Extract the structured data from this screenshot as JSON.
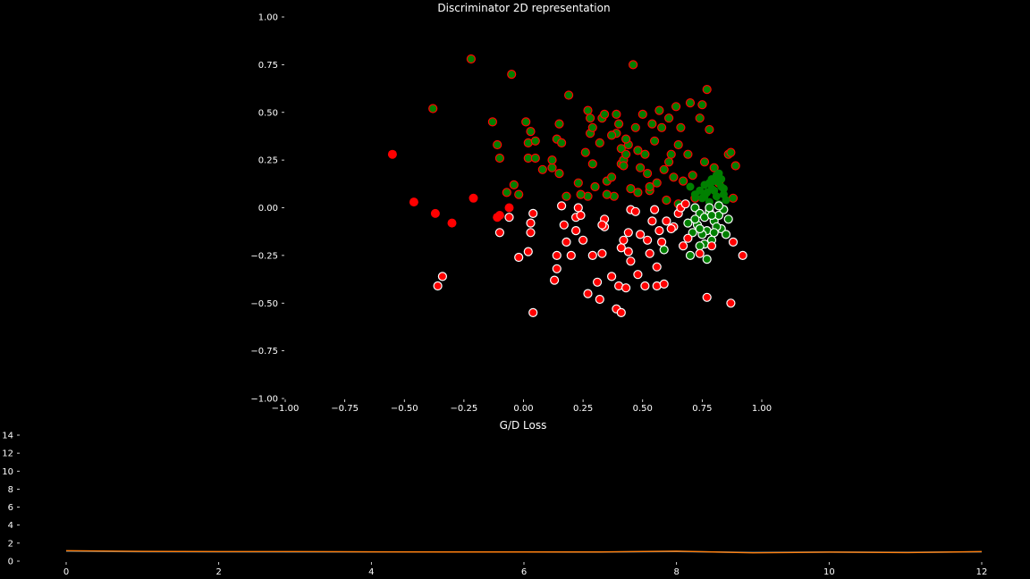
{
  "chart_data": [
    {
      "type": "scatter",
      "title": "Discriminator 2D representation",
      "xlabel": "",
      "ylabel": "",
      "xlim": [
        -1.0,
        1.0
      ],
      "ylim": [
        -1.0,
        1.0
      ],
      "x_ticks": [
        "−1.00",
        "−0.75",
        "−0.50",
        "−0.25",
        "0.00",
        "0.25",
        "0.50",
        "0.75",
        "1.00"
      ],
      "y_ticks": [
        "1.00",
        "0.75",
        "0.50",
        "0.25",
        "0.00",
        "−0.25",
        "−0.50",
        "−0.75",
        "−1.00"
      ],
      "grid": false,
      "colors": {
        "background": "#000000",
        "red": "#ff0000",
        "green": "#008000",
        "edge": "#ffffff"
      },
      "series": [
        {
          "marker": "red dot, no edge",
          "points": [
            [
              -0.55,
              0.28
            ],
            [
              -0.46,
              0.03
            ],
            [
              -0.37,
              -0.03
            ],
            [
              -0.3,
              -0.08
            ],
            [
              -0.21,
              0.05
            ],
            [
              -0.1,
              -0.04
            ],
            [
              -0.11,
              -0.05
            ],
            [
              -0.06,
              0.0
            ]
          ]
        },
        {
          "marker": "green dot, red edge",
          "points": [
            [
              -0.22,
              0.78
            ],
            [
              -0.05,
              0.7
            ],
            [
              -0.38,
              0.52
            ],
            [
              -0.13,
              0.45
            ],
            [
              -0.11,
              0.33
            ],
            [
              -0.1,
              0.26
            ],
            [
              -0.07,
              0.08
            ],
            [
              -0.04,
              0.12
            ],
            [
              -0.02,
              0.07
            ],
            [
              0.01,
              0.45
            ],
            [
              0.03,
              0.4
            ],
            [
              0.02,
              0.34
            ],
            [
              0.05,
              0.35
            ],
            [
              0.02,
              0.26
            ],
            [
              0.05,
              0.26
            ],
            [
              0.08,
              0.2
            ],
            [
              0.12,
              0.21
            ],
            [
              0.14,
              0.36
            ],
            [
              0.15,
              0.44
            ],
            [
              0.16,
              0.34
            ],
            [
              0.15,
              0.18
            ],
            [
              0.18,
              0.06
            ],
            [
              0.19,
              0.59
            ],
            [
              0.23,
              0.13
            ],
            [
              0.26,
              0.29
            ],
            [
              0.27,
              0.51
            ],
            [
              0.28,
              0.47
            ],
            [
              0.28,
              0.39
            ],
            [
              0.29,
              0.42
            ],
            [
              0.29,
              0.23
            ],
            [
              0.27,
              0.06
            ],
            [
              0.3,
              0.11
            ],
            [
              0.32,
              0.34
            ],
            [
              0.33,
              0.47
            ],
            [
              0.34,
              0.49
            ],
            [
              0.35,
              0.14
            ],
            [
              0.37,
              0.16
            ],
            [
              0.38,
              0.06
            ],
            [
              0.39,
              0.49
            ],
            [
              0.39,
              0.39
            ],
            [
              0.4,
              0.44
            ],
            [
              0.41,
              0.31
            ],
            [
              0.41,
              0.23
            ],
            [
              0.42,
              0.25
            ],
            [
              0.43,
              0.28
            ],
            [
              0.44,
              0.33
            ],
            [
              0.45,
              0.1
            ],
            [
              0.46,
              0.75
            ],
            [
              0.47,
              0.42
            ],
            [
              0.48,
              0.3
            ],
            [
              0.49,
              0.21
            ],
            [
              0.5,
              0.49
            ],
            [
              0.51,
              0.28
            ],
            [
              0.52,
              0.18
            ],
            [
              0.53,
              0.09
            ],
            [
              0.54,
              0.44
            ],
            [
              0.55,
              0.35
            ],
            [
              0.56,
              0.13
            ],
            [
              0.57,
              0.51
            ],
            [
              0.58,
              0.42
            ],
            [
              0.59,
              0.2
            ],
            [
              0.6,
              0.04
            ],
            [
              0.61,
              0.47
            ],
            [
              0.62,
              0.28
            ],
            [
              0.63,
              0.16
            ],
            [
              0.64,
              0.53
            ],
            [
              0.65,
              0.33
            ],
            [
              0.66,
              0.42
            ],
            [
              0.67,
              0.14
            ],
            [
              0.69,
              0.28
            ],
            [
              0.7,
              0.55
            ],
            [
              0.71,
              0.17
            ],
            [
              0.72,
              0.05
            ],
            [
              0.74,
              0.47
            ],
            [
              0.75,
              0.54
            ],
            [
              0.76,
              0.24
            ],
            [
              0.77,
              0.62
            ],
            [
              0.78,
              0.41
            ],
            [
              0.8,
              0.21
            ],
            [
              0.82,
              0.13
            ],
            [
              0.86,
              0.28
            ],
            [
              0.87,
              0.29
            ],
            [
              0.88,
              0.05
            ],
            [
              0.89,
              0.22
            ],
            [
              0.37,
              0.38
            ],
            [
              0.43,
              0.36
            ],
            [
              0.24,
              0.07
            ],
            [
              0.35,
              0.07
            ],
            [
              0.53,
              0.11
            ],
            [
              0.61,
              0.24
            ],
            [
              0.65,
              0.02
            ],
            [
              0.42,
              0.22
            ],
            [
              0.48,
              0.08
            ],
            [
              0.12,
              0.25
            ]
          ]
        },
        {
          "marker": "green dot, no edge",
          "points": [
            [
              0.7,
              0.11
            ],
            [
              0.72,
              0.07
            ],
            [
              0.74,
              0.09
            ],
            [
              0.75,
              0.05
            ],
            [
              0.76,
              0.12
            ],
            [
              0.77,
              0.08
            ],
            [
              0.78,
              0.03
            ],
            [
              0.79,
              0.1
            ],
            [
              0.8,
              0.14
            ],
            [
              0.81,
              0.06
            ],
            [
              0.82,
              0.18
            ],
            [
              0.83,
              0.11
            ],
            [
              0.84,
              0.07
            ],
            [
              0.85,
              0.04
            ],
            [
              0.79,
              0.15
            ],
            [
              0.81,
              0.17
            ],
            [
              0.83,
              0.15
            ],
            [
              0.76,
              0.06
            ],
            [
              0.78,
              0.13
            ],
            [
              0.8,
              0.09
            ],
            [
              0.82,
              0.02
            ],
            [
              0.84,
              0.1
            ]
          ]
        },
        {
          "marker": "green dot, white edge",
          "points": [
            [
              0.72,
              0.0
            ],
            [
              0.74,
              -0.03
            ],
            [
              0.76,
              -0.05
            ],
            [
              0.78,
              -0.02
            ],
            [
              0.8,
              -0.07
            ],
            [
              0.82,
              -0.04
            ],
            [
              0.83,
              -0.11
            ],
            [
              0.77,
              -0.12
            ],
            [
              0.75,
              -0.14
            ],
            [
              0.73,
              -0.09
            ],
            [
              0.79,
              -0.17
            ],
            [
              0.81,
              -0.1
            ],
            [
              0.84,
              -0.01
            ],
            [
              0.85,
              -0.14
            ],
            [
              0.71,
              -0.13
            ],
            [
              0.69,
              -0.08
            ],
            [
              0.78,
              0.0
            ],
            [
              0.8,
              -0.13
            ],
            [
              0.82,
              0.01
            ],
            [
              0.76,
              -0.19
            ],
            [
              0.74,
              -0.2
            ],
            [
              0.7,
              -0.25
            ],
            [
              0.77,
              -0.27
            ],
            [
              0.59,
              -0.22
            ],
            [
              0.74,
              -0.11
            ],
            [
              0.86,
              -0.06
            ],
            [
              0.79,
              -0.04
            ],
            [
              0.72,
              -0.06
            ]
          ]
        },
        {
          "marker": "red dot, white edge",
          "points": [
            [
              -0.1,
              -0.13
            ],
            [
              -0.06,
              -0.05
            ],
            [
              -0.02,
              -0.26
            ],
            [
              0.02,
              -0.23
            ],
            [
              0.03,
              -0.08
            ],
            [
              0.04,
              -0.03
            ],
            [
              0.03,
              -0.13
            ],
            [
              0.04,
              -0.55
            ],
            [
              0.13,
              -0.38
            ],
            [
              0.14,
              -0.32
            ],
            [
              0.14,
              -0.25
            ],
            [
              0.16,
              0.01
            ],
            [
              0.17,
              -0.09
            ],
            [
              0.18,
              -0.18
            ],
            [
              0.2,
              -0.25
            ],
            [
              0.22,
              -0.05
            ],
            [
              0.24,
              -0.04
            ],
            [
              0.22,
              -0.12
            ],
            [
              0.25,
              -0.17
            ],
            [
              0.27,
              -0.45
            ],
            [
              0.29,
              -0.25
            ],
            [
              0.31,
              -0.39
            ],
            [
              0.32,
              -0.48
            ],
            [
              0.33,
              -0.24
            ],
            [
              0.34,
              -0.1
            ],
            [
              0.34,
              -0.06
            ],
            [
              0.37,
              -0.36
            ],
            [
              0.39,
              -0.53
            ],
            [
              0.4,
              -0.41
            ],
            [
              0.41,
              -0.55
            ],
            [
              0.41,
              -0.21
            ],
            [
              0.42,
              -0.17
            ],
            [
              0.43,
              -0.42
            ],
            [
              0.44,
              -0.23
            ],
            [
              0.45,
              -0.28
            ],
            [
              0.44,
              -0.13
            ],
            [
              0.45,
              -0.01
            ],
            [
              0.47,
              -0.02
            ],
            [
              0.48,
              -0.35
            ],
            [
              0.49,
              -0.14
            ],
            [
              0.51,
              -0.41
            ],
            [
              0.52,
              -0.17
            ],
            [
              0.53,
              -0.24
            ],
            [
              0.54,
              -0.07
            ],
            [
              0.55,
              -0.01
            ],
            [
              0.56,
              -0.41
            ],
            [
              0.56,
              -0.31
            ],
            [
              0.57,
              -0.12
            ],
            [
              0.58,
              -0.18
            ],
            [
              0.59,
              -0.4
            ],
            [
              0.6,
              -0.07
            ],
            [
              0.63,
              -0.1
            ],
            [
              0.65,
              -0.03
            ],
            [
              0.67,
              -0.2
            ],
            [
              0.69,
              -0.16
            ],
            [
              0.77,
              -0.47
            ],
            [
              0.79,
              -0.2
            ],
            [
              0.87,
              -0.5
            ],
            [
              0.88,
              -0.18
            ],
            [
              0.92,
              -0.25
            ],
            [
              -0.34,
              -0.36
            ],
            [
              -0.36,
              -0.41
            ],
            [
              0.66,
              0.0
            ],
            [
              0.68,
              0.02
            ],
            [
              0.62,
              -0.11
            ],
            [
              0.74,
              -0.24
            ],
            [
              0.33,
              -0.09
            ],
            [
              0.23,
              0.0
            ]
          ]
        }
      ]
    },
    {
      "type": "line",
      "title": "G/D Loss",
      "xlabel": "",
      "ylabel": "",
      "xlim": [
        0,
        12
      ],
      "ylim": [
        0,
        14
      ],
      "x_ticks": [
        "0",
        "2",
        "4",
        "6",
        "8",
        "10",
        "12"
      ],
      "y_ticks": [
        "0",
        "2",
        "4",
        "6",
        "8",
        "10",
        "12",
        "14"
      ],
      "grid": false,
      "colors": {
        "orange": "#ff7f0e",
        "blue": "#1f77b4"
      },
      "series": [
        {
          "x": [
            0,
            1,
            2,
            3,
            4,
            5,
            6,
            7,
            8,
            9,
            10,
            11,
            12
          ],
          "values": [
            1.15,
            1.08,
            1.05,
            1.05,
            1.03,
            1.02,
            1.02,
            1.02,
            1.1,
            0.93,
            1.0,
            0.95,
            1.05
          ]
        },
        {
          "x": [
            0,
            1,
            2,
            3,
            4,
            5,
            6,
            7,
            8,
            9,
            10,
            11,
            12
          ],
          "values": [
            1.1,
            1.04,
            1.03,
            1.02,
            1.02,
            1.01,
            1.01,
            1.0,
            1.06,
            0.97,
            1.0,
            0.98,
            1.03
          ]
        }
      ]
    }
  ]
}
